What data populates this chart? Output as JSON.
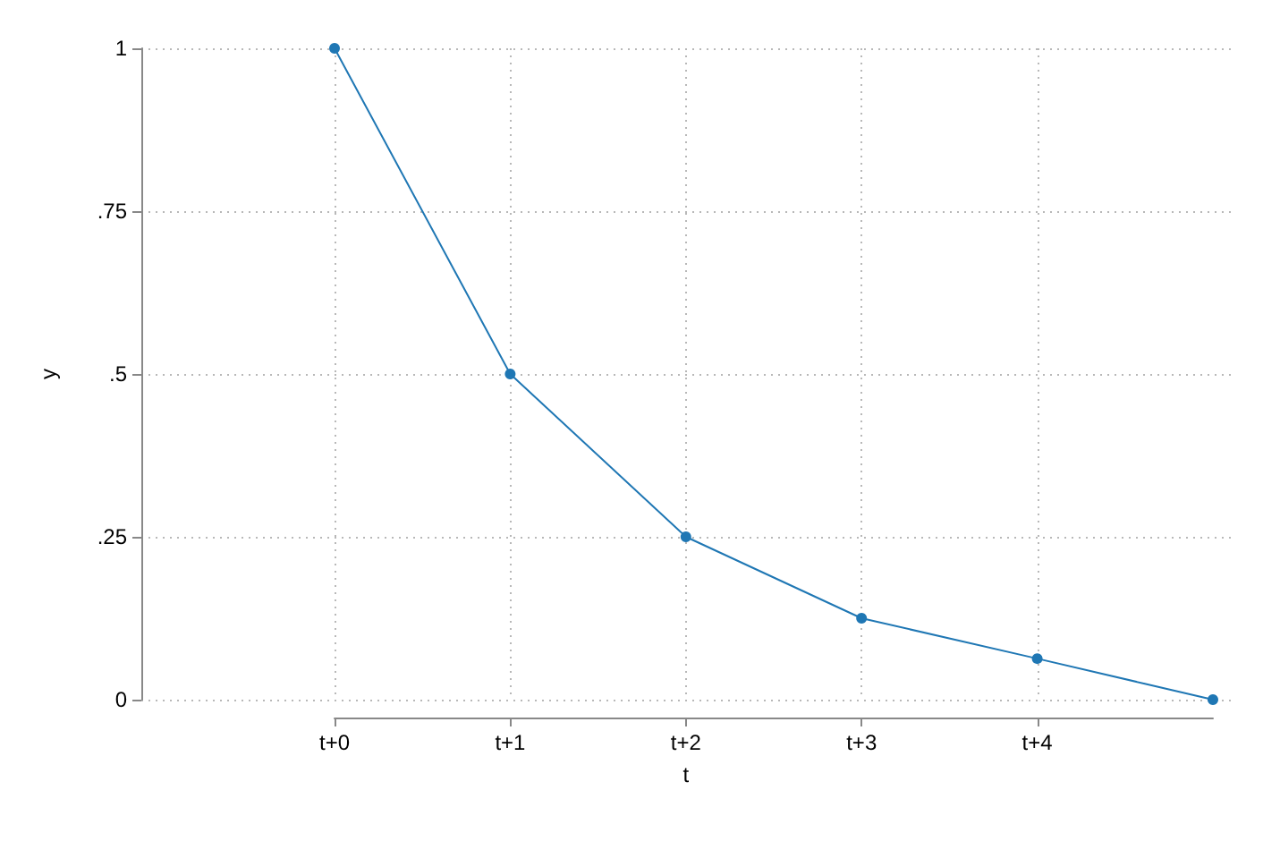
{
  "chart_data": {
    "type": "line",
    "xlabel": "t",
    "ylabel": "y",
    "categories": [
      "t+0",
      "t+1",
      "t+2",
      "t+3",
      "t+4",
      null
    ],
    "values": [
      1,
      0.5,
      0.25,
      0.125,
      0.063,
      0
    ],
    "color": "#1f77b4",
    "ylim": [
      0,
      1
    ],
    "yticks": [
      0,
      {
        "value": 0.25,
        "label": ".25"
      },
      {
        "value": 0.5,
        "label": ".5"
      },
      {
        "value": 0.75,
        "label": ".75"
      },
      1
    ],
    "grid": true,
    "marker": "circle",
    "line_style": "solid"
  }
}
